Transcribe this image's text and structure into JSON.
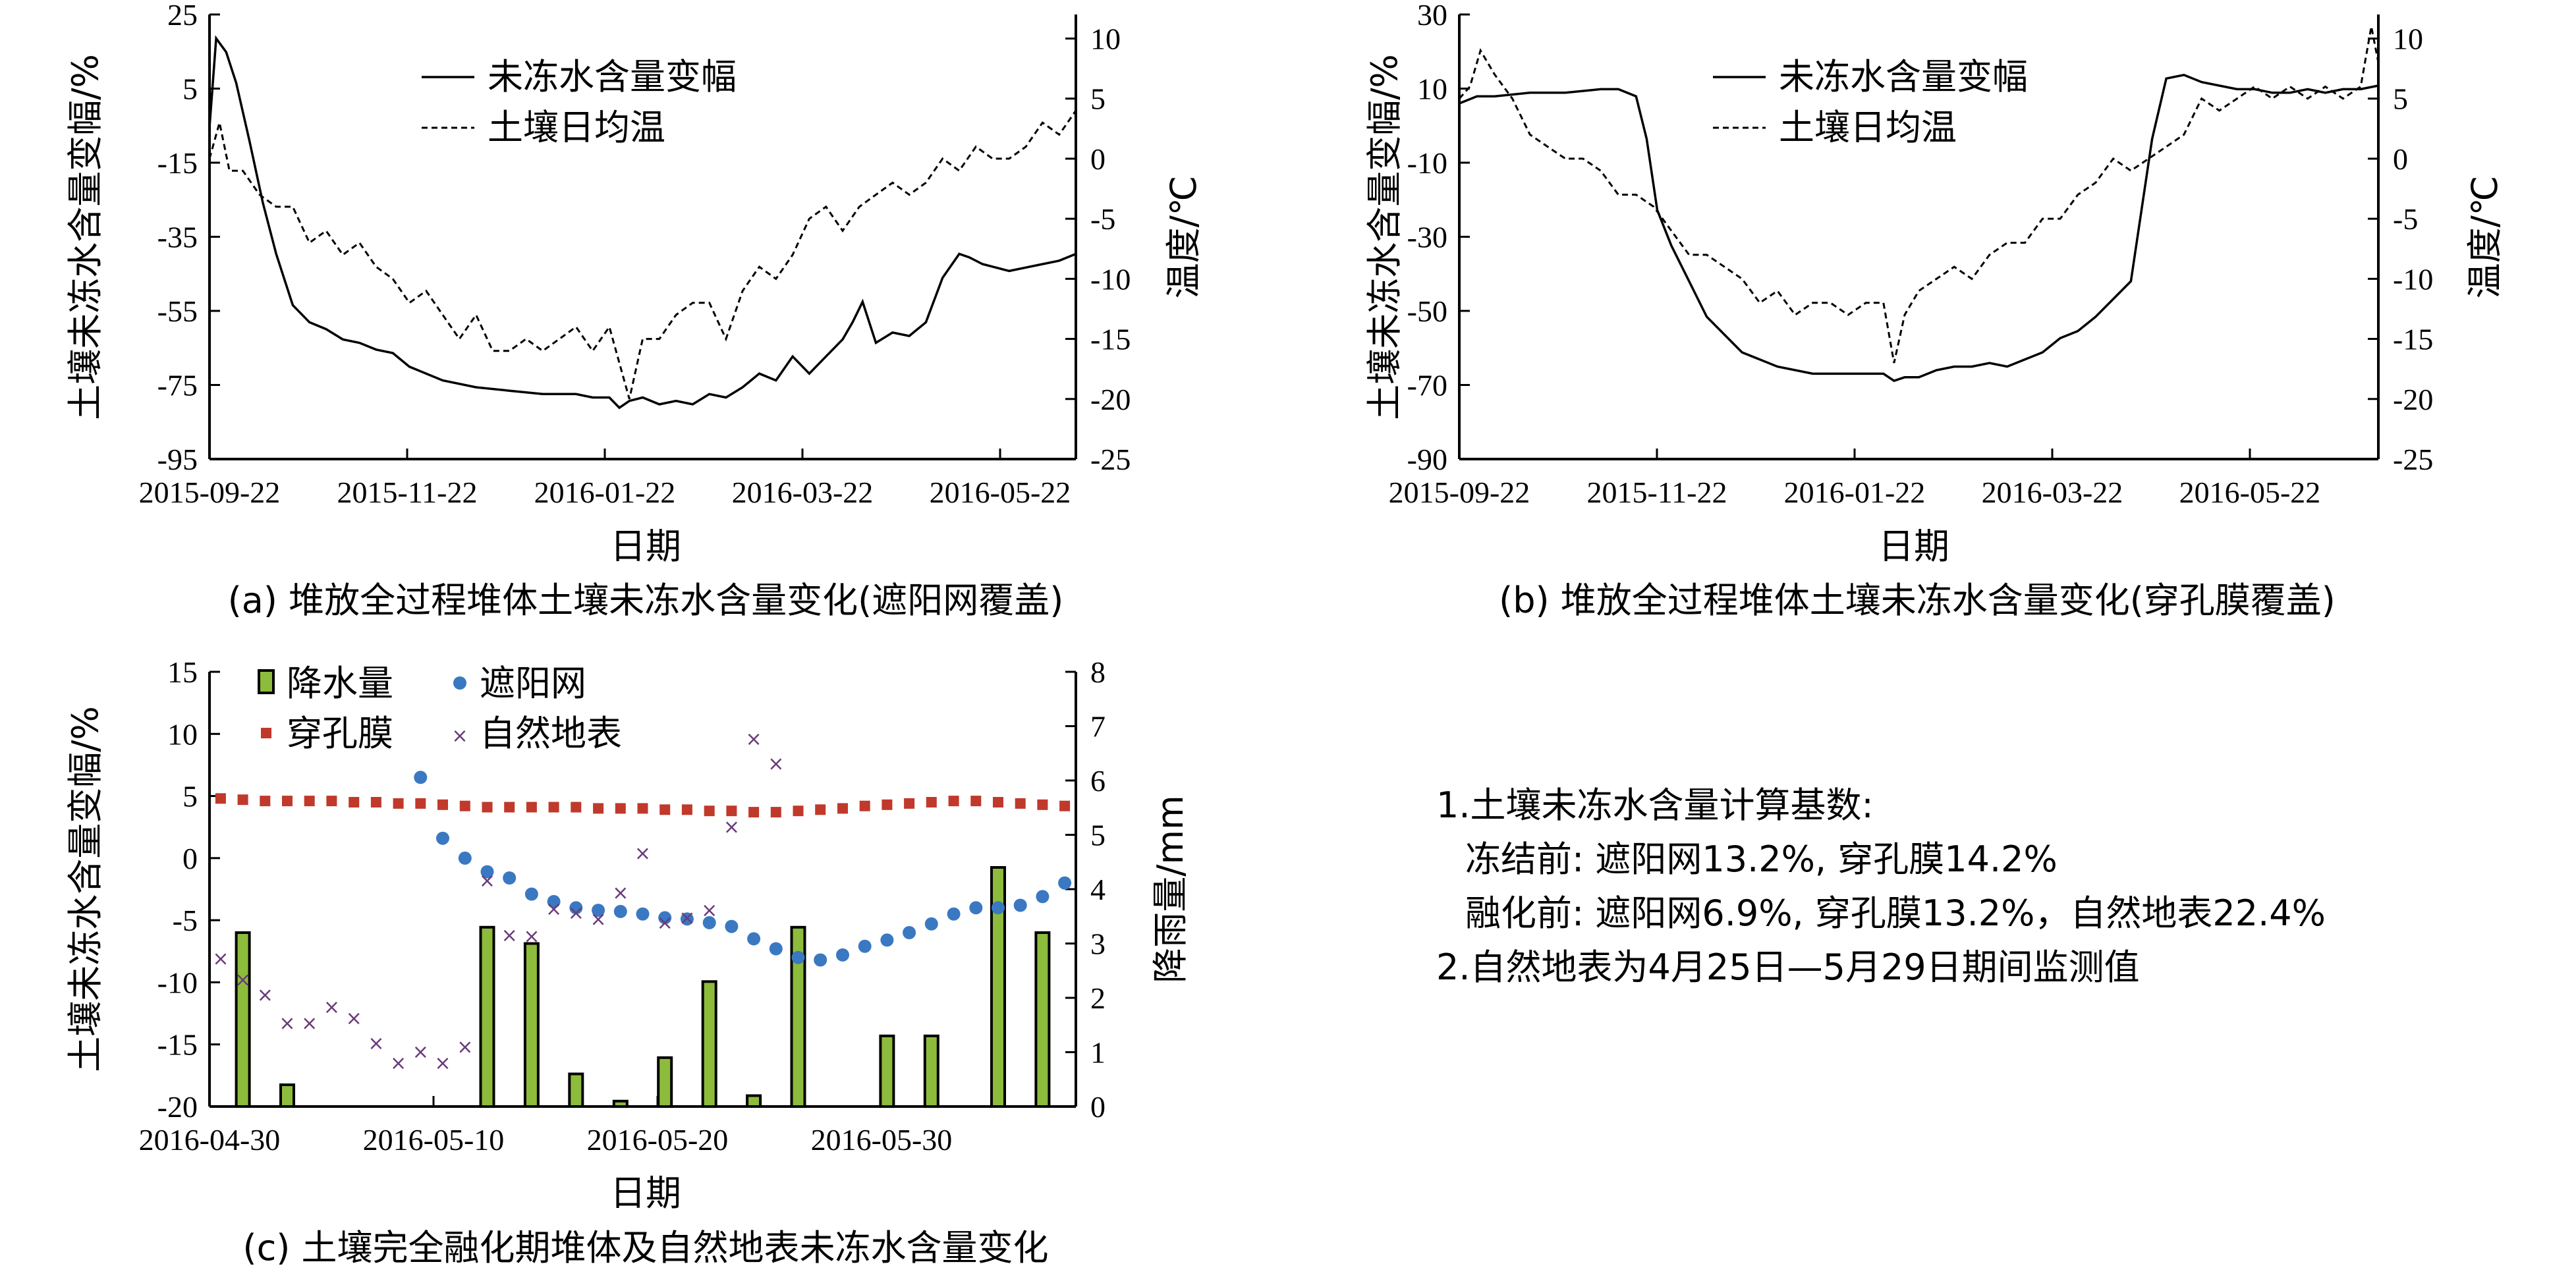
{
  "chart_data": [
    {
      "id": "a",
      "type": "line",
      "caption": "(a) 堆放全过程堆体土壤未冻水含量变化(遮阳网覆盖)",
      "xlabel": "日期",
      "ylabel": "土壤未冻水含量变幅/%",
      "y2label": "温度/℃",
      "x_ticks": [
        "2015-09-22",
        "2015-11-22",
        "2016-01-22",
        "2016-03-22",
        "2016-05-22"
      ],
      "ylim": [
        -95,
        35
      ],
      "y_ticks": [
        "25",
        "5",
        "-15",
        "-35",
        "-55",
        "-75",
        "-95"
      ],
      "y2lim": [
        -25,
        12
      ],
      "y2_ticks": [
        "10",
        "5",
        "0",
        "-5",
        "-10",
        "-15",
        "-20",
        "-25"
      ],
      "legend": [
        "未冻水含量变幅",
        "土壤日均温"
      ],
      "series": [
        {
          "name": "未冻水含量变幅",
          "axis": "left",
          "style": "solid",
          "x": [
            0,
            2,
            5,
            8,
            12,
            16,
            20,
            25,
            30,
            35,
            40,
            45,
            50,
            55,
            60,
            70,
            80,
            90,
            100,
            110,
            115,
            120,
            123,
            126,
            130,
            135,
            140,
            145,
            150,
            155,
            160,
            165,
            170,
            175,
            180,
            185,
            190,
            193,
            196,
            200,
            205,
            210,
            215,
            220,
            225,
            228,
            232,
            236,
            240,
            245,
            250,
            255,
            260
          ],
          "y": [
            2,
            28,
            24,
            15,
            -2,
            -20,
            -35,
            -50,
            -55,
            -57,
            -60,
            -61,
            -63,
            -64,
            -68,
            -72,
            -74,
            -75,
            -76,
            -76,
            -77,
            -77,
            -80,
            -78,
            -77,
            -79,
            -78,
            -79,
            -76,
            -77,
            -74,
            -70,
            -72,
            -65,
            -70,
            -65,
            -60,
            -55,
            -49,
            -61,
            -58,
            -59,
            -55,
            -42,
            -35,
            -36,
            -38,
            -39,
            -40,
            -39,
            -38,
            -37,
            -35
          ]
        },
        {
          "name": "土壤日均温",
          "axis": "right",
          "style": "dashed",
          "x": [
            0,
            3,
            6,
            10,
            15,
            20,
            25,
            30,
            35,
            40,
            45,
            50,
            55,
            60,
            65,
            70,
            75,
            80,
            85,
            90,
            95,
            100,
            105,
            110,
            115,
            120,
            123,
            126,
            130,
            135,
            140,
            145,
            150,
            155,
            160,
            165,
            170,
            175,
            180,
            185,
            190,
            195,
            200,
            205,
            210,
            215,
            220,
            225,
            230,
            235,
            240,
            245,
            250,
            255,
            260
          ],
          "y": [
            0,
            3,
            -1,
            -1,
            -3,
            -4,
            -4,
            -7,
            -6,
            -8,
            -7,
            -9,
            -10,
            -12,
            -11,
            -13,
            -15,
            -13,
            -16,
            -16,
            -15,
            -16,
            -15,
            -14,
            -16,
            -14,
            -17,
            -20,
            -15,
            -15,
            -13,
            -12,
            -12,
            -15,
            -11,
            -9,
            -10,
            -8,
            -5,
            -4,
            -6,
            -4,
            -3,
            -2,
            -3,
            -2,
            0,
            -1,
            1,
            0,
            0,
            1,
            3,
            2,
            4
          ]
        }
      ]
    },
    {
      "id": "b",
      "type": "line",
      "caption": "(b) 堆放全过程堆体土壤未冻水含量变化(穿孔膜覆盖)",
      "xlabel": "日期",
      "ylabel": "土壤未冻水含量变幅/%",
      "y2label": "温度/℃",
      "x_ticks": [
        "2015-09-22",
        "2015-11-22",
        "2016-01-22",
        "2016-03-22",
        "2016-05-22"
      ],
      "ylim": [
        -90,
        35
      ],
      "y_ticks": [
        "30",
        "10",
        "-10",
        "-30",
        "-50",
        "-70",
        "-90"
      ],
      "y2lim": [
        -25,
        12
      ],
      "y2_ticks": [
        "10",
        "5",
        "0",
        "-5",
        "-10",
        "-15",
        "-20",
        "-25"
      ],
      "legend": [
        "未冻水含量变幅",
        "土壤日均温"
      ],
      "series": [
        {
          "name": "未冻水含量变幅",
          "axis": "left",
          "style": "solid",
          "x": [
            0,
            5,
            10,
            20,
            30,
            40,
            45,
            50,
            53,
            56,
            60,
            65,
            70,
            75,
            80,
            90,
            100,
            110,
            115,
            120,
            123,
            126,
            130,
            135,
            140,
            145,
            150,
            155,
            160,
            165,
            170,
            175,
            180,
            185,
            190,
            193,
            196,
            200,
            205,
            210,
            215,
            220,
            225,
            230,
            235,
            240,
            245,
            250,
            255,
            260
          ],
          "y": [
            10,
            12,
            12,
            13,
            13,
            14,
            14,
            12,
            0,
            -20,
            -30,
            -40,
            -50,
            -55,
            -60,
            -64,
            -66,
            -66,
            -66,
            -66,
            -68,
            -67,
            -67,
            -65,
            -64,
            -64,
            -63,
            -64,
            -62,
            -60,
            -56,
            -54,
            -50,
            -45,
            -40,
            -20,
            0,
            17,
            18,
            16,
            15,
            14,
            14,
            13,
            13,
            14,
            13,
            14,
            14,
            15
          ]
        },
        {
          "name": "土壤日均温",
          "axis": "right",
          "style": "dashed",
          "x": [
            0,
            3,
            6,
            10,
            15,
            20,
            25,
            30,
            35,
            40,
            45,
            50,
            55,
            60,
            65,
            70,
            75,
            80,
            85,
            90,
            95,
            100,
            105,
            110,
            115,
            120,
            123,
            126,
            130,
            135,
            140,
            145,
            150,
            155,
            160,
            165,
            170,
            175,
            180,
            185,
            190,
            195,
            200,
            205,
            210,
            215,
            220,
            225,
            230,
            235,
            240,
            245,
            250,
            255,
            258,
            260
          ],
          "y": [
            5,
            6,
            9,
            7,
            5,
            2,
            1,
            0,
            0,
            -1,
            -3,
            -3,
            -4,
            -6,
            -8,
            -8,
            -9,
            -10,
            -12,
            -11,
            -13,
            -12,
            -12,
            -13,
            -12,
            -12,
            -17,
            -13,
            -11,
            -10,
            -9,
            -10,
            -8,
            -7,
            -7,
            -5,
            -5,
            -3,
            -2,
            0,
            -1,
            0,
            1,
            2,
            5,
            4,
            5,
            6,
            5,
            6,
            5,
            6,
            5,
            6,
            11,
            8
          ]
        }
      ]
    },
    {
      "id": "c",
      "type": "bar",
      "caption": "(c) 土壤完全融化期堆体及自然地表未冻水含量变化",
      "xlabel": "日期",
      "ylabel": "土壤未冻水含量变幅/%",
      "y2label": "降雨量/mm",
      "x_ticks": [
        "2016-04-30",
        "2016-05-10",
        "2016-05-20",
        "2016-05-30"
      ],
      "xlim": [
        -0.5,
        38.5
      ],
      "ylim": [
        -20,
        15
      ],
      "y_ticks": [
        "15",
        "10",
        "5",
        "0",
        "-5",
        "-10",
        "-15",
        "-20"
      ],
      "y2lim": [
        0,
        8
      ],
      "y2_ticks": [
        "8",
        "7",
        "6",
        "5",
        "4",
        "3",
        "2",
        "1",
        "0"
      ],
      "legend": [
        "降水量",
        "遮阳网",
        "穿孔膜",
        "自然地表"
      ],
      "series": [
        {
          "name": "降水量",
          "kind": "bar",
          "axis": "right",
          "x": [
            1,
            3,
            12,
            14,
            16,
            18,
            20,
            22,
            24,
            26,
            30,
            32,
            35,
            37
          ],
          "y": [
            3.2,
            0.4,
            3.3,
            3.0,
            0.6,
            0.1,
            0.9,
            2.3,
            0.2,
            3.3,
            1.3,
            1.3,
            4.4,
            3.2
          ]
        },
        {
          "name": "遮阳网",
          "kind": "scatter",
          "axis": "left",
          "marker": "dot",
          "x": [
            9,
            10,
            11,
            12,
            13,
            14,
            15,
            16,
            17,
            18,
            19,
            20,
            21,
            22,
            23,
            24,
            25,
            26,
            27,
            28,
            29,
            30,
            31,
            32,
            33,
            34,
            35,
            36,
            37,
            38
          ],
          "y": [
            6.5,
            1.6,
            0,
            -1.1,
            -1.6,
            -2.9,
            -3.5,
            -4,
            -4.2,
            -4.3,
            -4.5,
            -4.8,
            -4.9,
            -5.2,
            -5.5,
            -6.5,
            -7.3,
            -8,
            -8.2,
            -7.8,
            -7.1,
            -6.6,
            -6.0,
            -5.3,
            -4.5,
            -4.0,
            -4.0,
            -3.8,
            -3.1,
            -2.0
          ]
        },
        {
          "name": "穿孔膜",
          "kind": "scatter",
          "axis": "left",
          "marker": "square",
          "x": [
            0,
            1,
            2,
            3,
            4,
            5,
            6,
            7,
            8,
            9,
            10,
            11,
            12,
            13,
            14,
            15,
            16,
            17,
            18,
            19,
            20,
            21,
            22,
            23,
            24,
            25,
            26,
            27,
            28,
            29,
            30,
            31,
            32,
            33,
            34,
            35,
            36,
            37,
            38
          ],
          "y": [
            4.8,
            4.7,
            4.6,
            4.6,
            4.6,
            4.6,
            4.5,
            4.5,
            4.4,
            4.4,
            4.3,
            4.2,
            4.1,
            4.1,
            4.1,
            4.1,
            4.1,
            4.0,
            4.0,
            4.0,
            3.9,
            3.9,
            3.8,
            3.8,
            3.7,
            3.7,
            3.8,
            3.9,
            4.0,
            4.2,
            4.3,
            4.4,
            4.5,
            4.6,
            4.6,
            4.5,
            4.4,
            4.3,
            4.2
          ]
        },
        {
          "name": "自然地表",
          "kind": "scatter",
          "axis": "left",
          "marker": "x",
          "x": [
            0,
            1,
            2,
            3,
            4,
            5,
            6,
            7,
            8,
            9,
            10,
            11,
            12,
            13,
            14,
            15,
            16,
            17,
            18,
            19,
            20,
            21,
            22,
            23,
            24,
            25,
            26,
            27
          ],
          "y": [
            -8.1,
            -9.8,
            -11.0,
            -13.3,
            -13.3,
            -12.0,
            -12.9,
            -14.9,
            -16.5,
            -15.6,
            -16.5,
            -15.2,
            -1.8,
            -6.2,
            -6.3,
            -4.1,
            -4.4,
            -4.9,
            -2.8,
            0.4,
            -5.2,
            -4.8,
            -4.2,
            2.5,
            9.6,
            7.6,
            null,
            null
          ]
        }
      ]
    }
  ],
  "notes": {
    "line1": "1.土壤未冻水含量计算基数:",
    "line2": "冻结前: 遮阳网13.2%, 穿孔膜14.2%",
    "line3": "融化前: 遮阳网6.9%, 穿孔膜13.2%，自然地表22.4%",
    "line4": "2.自然地表为4月25日—5月29日期间监测值"
  }
}
